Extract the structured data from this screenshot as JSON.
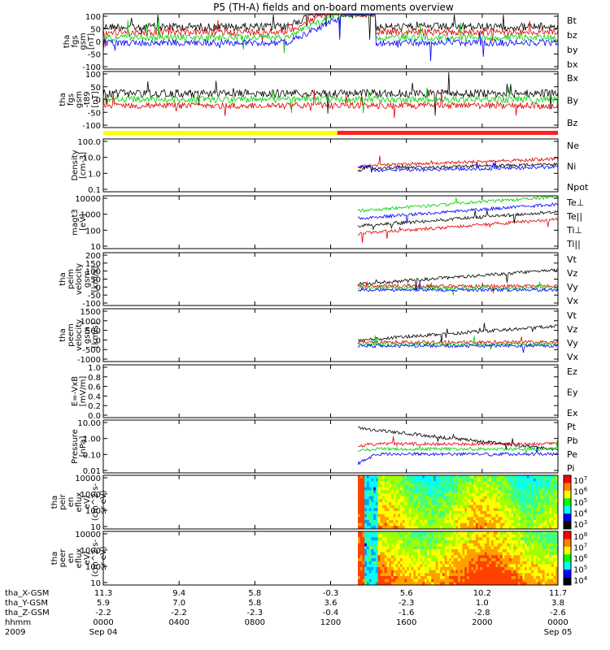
{
  "colors": {
    "black": "#000000",
    "red": "#e00000",
    "green": "#00d000",
    "blue": "#0000ff",
    "yellow": "#ffff00",
    "orange_red": "#ff2020"
  },
  "chart_data": {
    "type": "line",
    "title": "P5 (TH-A) fields and on-board moments overview",
    "panels": [
      {
        "id": "fgs_gse",
        "ylabel_lines": [
          "tha",
          "fgs",
          "gsm",
          "[nT]"
        ],
        "yticks": [
          "100",
          "50",
          "0",
          "-50",
          "-100"
        ],
        "yrange": [
          -100,
          100
        ],
        "series": [
          {
            "name": "Bt",
            "color": "#000000"
          },
          {
            "name": "bz",
            "color": "#e00000"
          },
          {
            "name": "by",
            "color": "#00d000"
          },
          {
            "name": "bx",
            "color": "#0000ff"
          }
        ]
      },
      {
        "id": "fgs_t89",
        "ylabel_lines": [
          "tha",
          "fgs",
          "gsm",
          "-t89",
          "[nT]"
        ],
        "yticks": [
          "100",
          "50",
          "0",
          "-50",
          "-100"
        ],
        "yrange": [
          -120,
          120
        ],
        "series": [
          {
            "name": "Bx",
            "color": "#000000"
          },
          {
            "name": "By",
            "color": "#00d000"
          },
          {
            "name": "Bz",
            "color": "#e00000"
          }
        ]
      },
      {
        "id": "density",
        "ylabel_lines": [
          "Density",
          "[cm-3]"
        ],
        "yticks": [
          "100.0",
          "10.0",
          "1.0",
          "0.1"
        ],
        "log": true,
        "series": [
          {
            "name": "Ne",
            "color": "#e00000"
          },
          {
            "name": "Ni",
            "color": "#000000"
          },
          {
            "name": "Npot",
            "color": "#0000ff"
          }
        ]
      },
      {
        "id": "temperature",
        "ylabel_lines": [
          "magt3",
          "[eV]"
        ],
        "yticks": [
          "10000",
          "1000",
          "100",
          "10"
        ],
        "log": true,
        "series": [
          {
            "name": "Te⊥",
            "color": "#e00000"
          },
          {
            "name": "Te||",
            "color": "#000000"
          },
          {
            "name": "Ti⊥",
            "color": "#0000ff"
          },
          {
            "name": "Ti||",
            "color": "#00d000"
          }
        ]
      },
      {
        "id": "peim_velocity",
        "ylabel_lines": [
          "tha",
          "peim",
          "velocity",
          "gsm",
          "[km/s]"
        ],
        "yticks": [
          "200",
          "150",
          "100",
          "50",
          "0",
          "-50",
          "-100"
        ],
        "yrange": [
          -100,
          200
        ],
        "series": [
          {
            "name": "Vt",
            "color": "#000000"
          },
          {
            "name": "Vz",
            "color": "#e00000"
          },
          {
            "name": "Vy",
            "color": "#00d000"
          },
          {
            "name": "Vx",
            "color": "#0000ff"
          }
        ]
      },
      {
        "id": "peem_velocity",
        "ylabel_lines": [
          "tha",
          "peem",
          "velocity",
          "gsm",
          "[km/s]"
        ],
        "yticks": [
          "1500",
          "1000",
          "500",
          "0",
          "-500",
          "-1000"
        ],
        "yrange": [
          -1000,
          1500
        ],
        "series": [
          {
            "name": "Vt",
            "color": "#000000"
          },
          {
            "name": "Vz",
            "color": "#e00000"
          },
          {
            "name": "Vy",
            "color": "#00d000"
          },
          {
            "name": "Vx",
            "color": "#0000ff"
          }
        ]
      },
      {
        "id": "efield",
        "ylabel_lines": [
          "E=-VxB",
          "[mV/m]"
        ],
        "yticks": [
          "1.0",
          "0.8",
          "0.6",
          "0.4",
          "0.2",
          "0.0"
        ],
        "yrange": [
          0,
          1
        ],
        "series": [
          {
            "name": "Ez",
            "color": "#e00000"
          },
          {
            "name": "Ey",
            "color": "#00d000"
          },
          {
            "name": "Ex",
            "color": "#0000ff"
          }
        ]
      },
      {
        "id": "pressure",
        "ylabel_lines": [
          "Pressure",
          "[nPa]"
        ],
        "yticks": [
          "10.00",
          "1.00",
          "0.10",
          "0.01"
        ],
        "log": true,
        "series": [
          {
            "name": "Pt",
            "color": "#000000"
          },
          {
            "name": "Pb",
            "color": "#e00000"
          },
          {
            "name": "Pe",
            "color": "#00d000"
          },
          {
            "name": "Pi",
            "color": "#0000ff"
          }
        ]
      },
      {
        "id": "peir_flux",
        "type": "heatmap",
        "ylabel_lines": [
          "tha",
          "peir",
          "en",
          "eflux",
          "eV/",
          "(cm^2-s-",
          "sr-eV)"
        ],
        "yticks": [
          "10000",
          "1000",
          "100",
          "10"
        ],
        "colorbar_ticks": [
          "10^7",
          "10^6",
          "10^5",
          "10^4",
          "10^3"
        ]
      },
      {
        "id": "peer_flux",
        "type": "heatmap",
        "ylabel_lines": [
          "tha",
          "peer",
          "en",
          "eflux",
          "eV/",
          "(cm^2-s-",
          "sr-eV)"
        ],
        "yticks": [
          "10000",
          "1000",
          "100",
          "10"
        ],
        "colorbar_ticks": [
          "10^8",
          "10^7",
          "10^6",
          "10^5",
          "10^4"
        ]
      }
    ],
    "x_axis": {
      "rows": [
        {
          "label": "tha_X-GSM",
          "values": [
            "11.3",
            "9.4",
            "5.8",
            "-0.3",
            "5.6",
            "10.2",
            "11.7"
          ]
        },
        {
          "label": "tha_Y-GSM",
          "values": [
            "5.9",
            "7.0",
            "5.8",
            "3.6",
            "-2.3",
            "1.0",
            "3.8"
          ]
        },
        {
          "label": "tha_Z-GSM",
          "values": [
            "-2.2",
            "-2.2",
            "-2.3",
            "-0.4",
            "-1.6",
            "-2.8",
            "-2.6"
          ]
        },
        {
          "label": "hhmm",
          "values": [
            "0000",
            "0400",
            "0800",
            "1200",
            "1600",
            "2000",
            "0000"
          ]
        },
        {
          "label": "2009",
          "values": [
            "Sep 04",
            "",
            "",
            "",
            "",
            "",
            "Sep 05"
          ]
        }
      ]
    }
  }
}
